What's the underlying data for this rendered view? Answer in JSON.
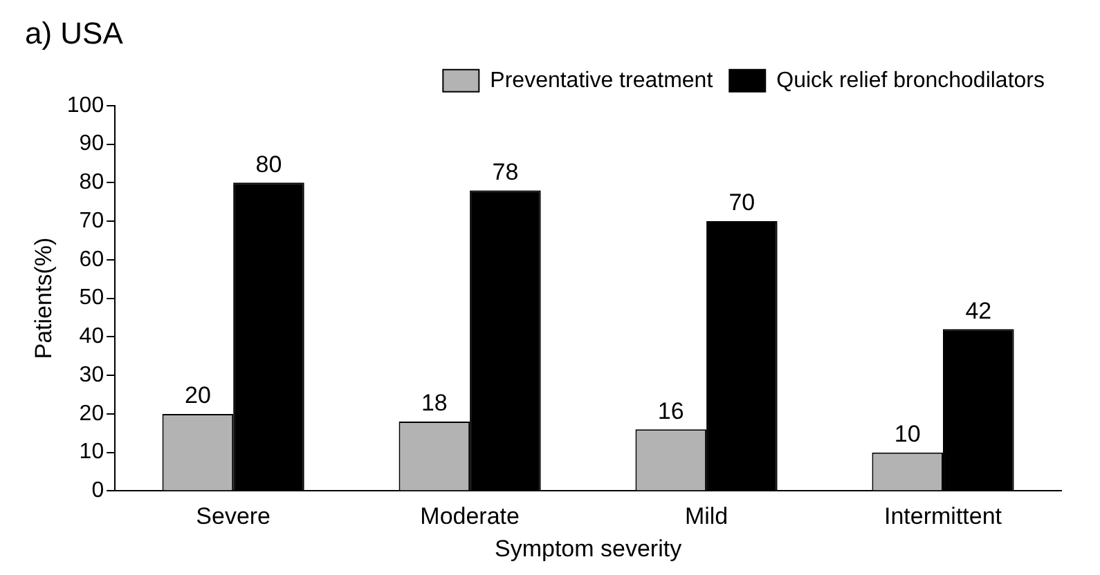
{
  "chart_data": {
    "type": "bar",
    "title": "a) USA",
    "xlabel": "Symptom severity",
    "ylabel": "Patients(%)",
    "categories": [
      "Severe",
      "Moderate",
      "Mild",
      "Intermittent"
    ],
    "series": [
      {
        "name": "Preventative treatment",
        "color": "#b3b3b3",
        "values": [
          20,
          18,
          16,
          10
        ]
      },
      {
        "name": "Quick relief bronchodilators",
        "color": "#000000",
        "values": [
          80,
          78,
          70,
          42
        ]
      }
    ],
    "ylim": [
      0,
      100
    ],
    "yticks": [
      0,
      10,
      20,
      30,
      40,
      50,
      60,
      70,
      80,
      90,
      100
    ],
    "grid": false,
    "legend": "top right",
    "data_labels": true
  }
}
